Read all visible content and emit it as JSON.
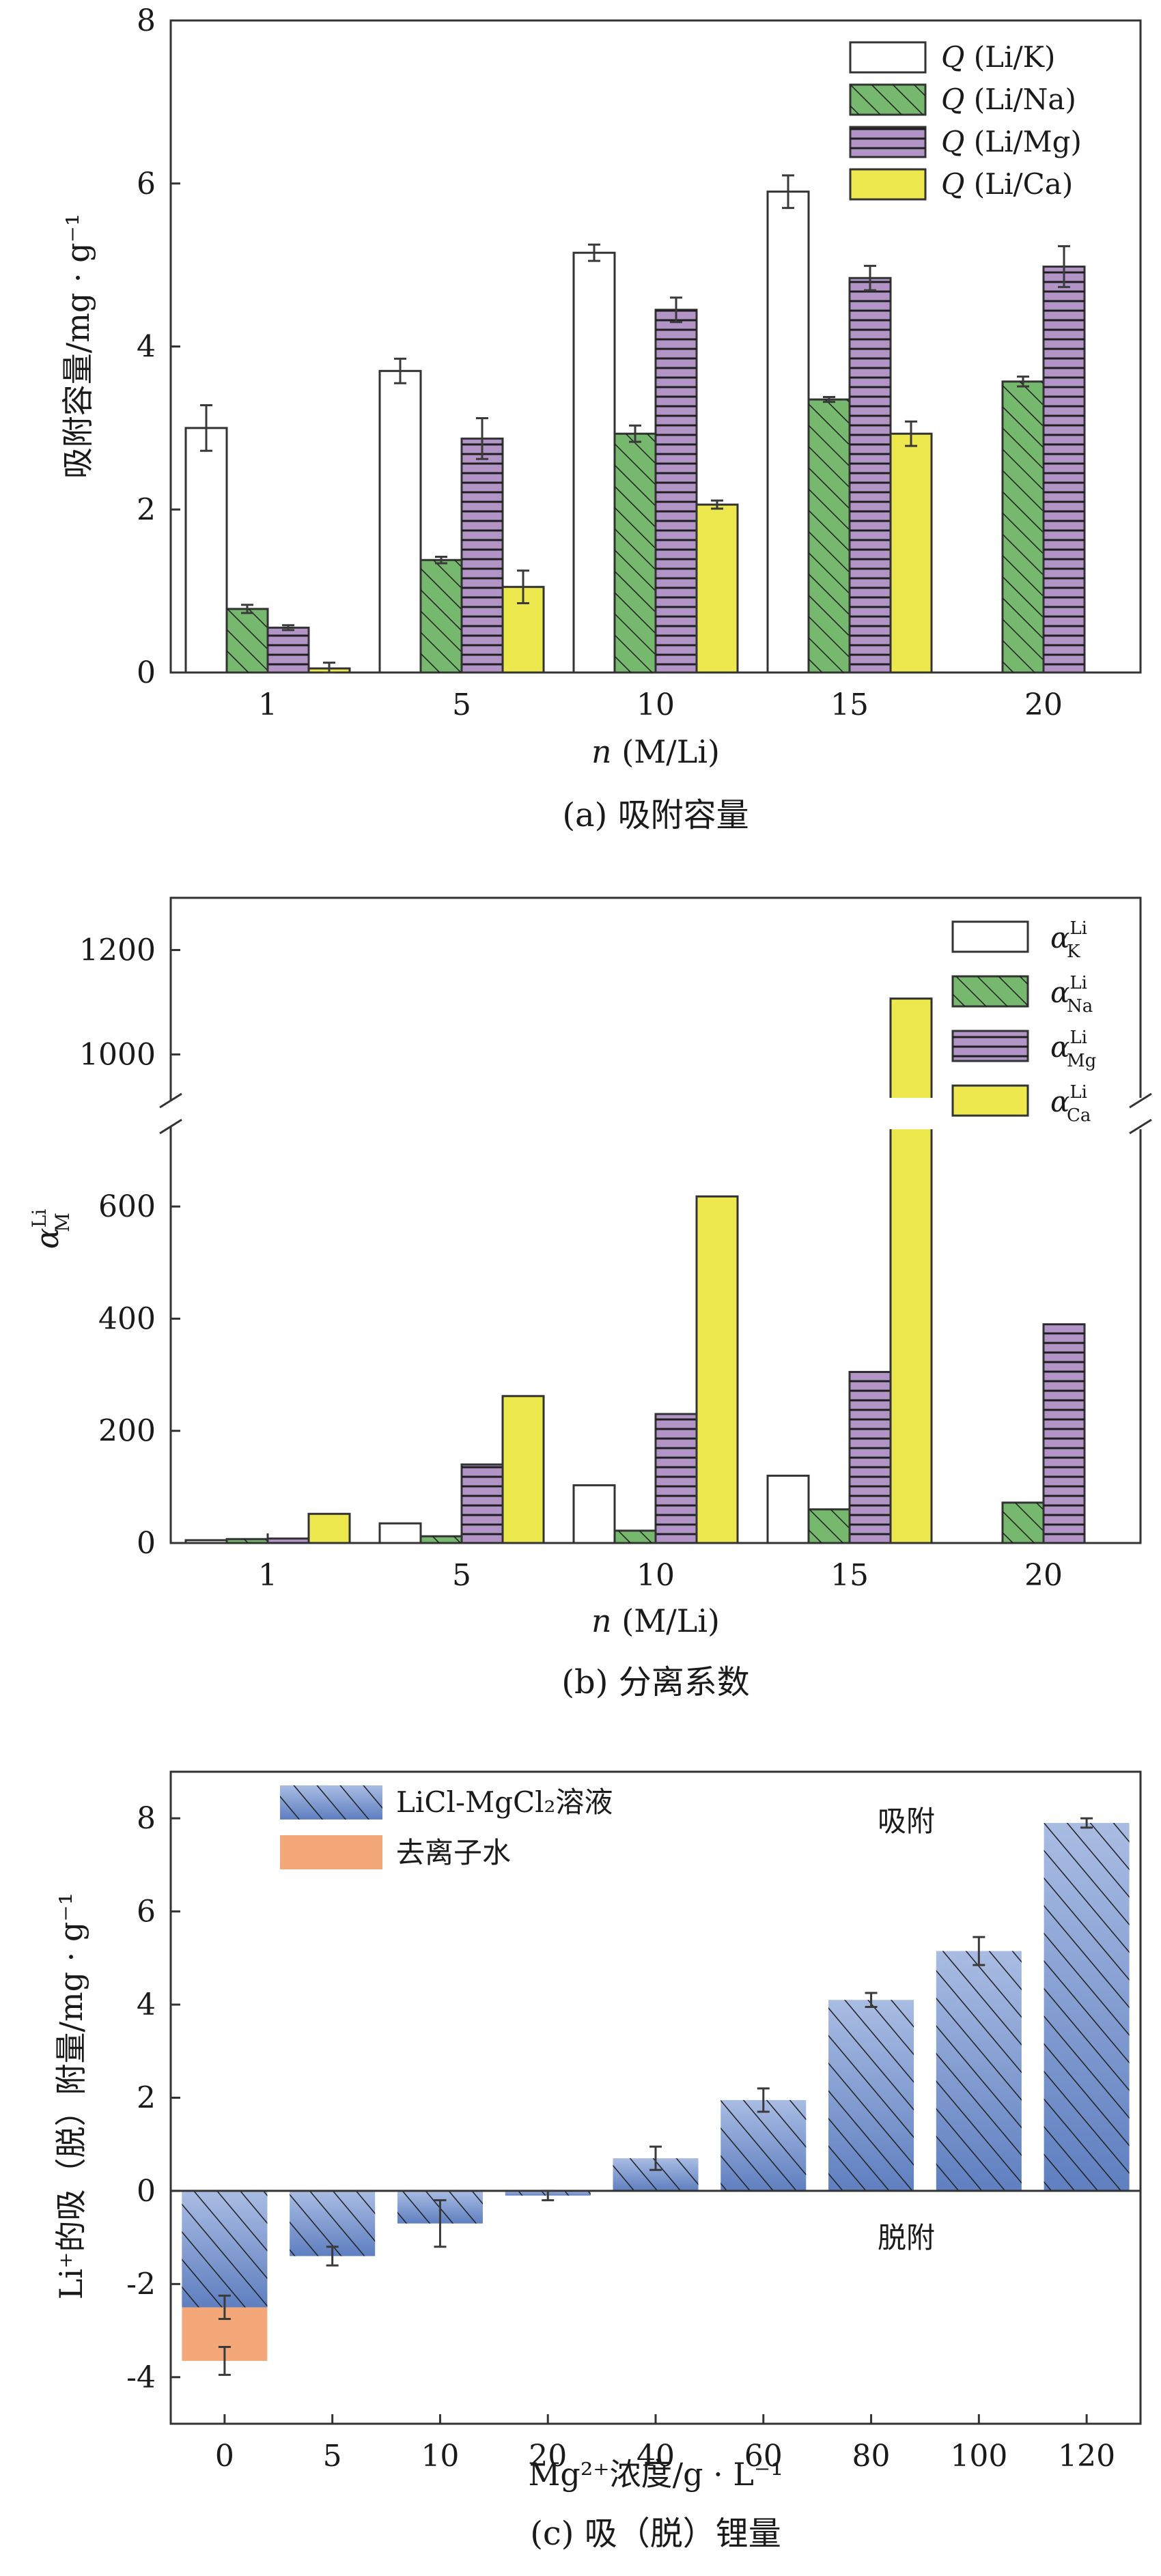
{
  "colors": {
    "K": "#ffffff",
    "Na": "#76b86e",
    "Mg": "#b394c7",
    "Ca": "#ece84e",
    "blue": "#7f98cc",
    "orange": "#f4a87a",
    "axis": "#333333"
  },
  "chart_data": [
    {
      "type": "bar",
      "panel": "a",
      "caption": "(a) 吸附容量",
      "ylabel": "吸附容量/mg · g⁻¹",
      "xlabel": "n (M/Li)",
      "xlabel_italic": "n",
      "xlabel_rest": " (M/Li)",
      "ylim": [
        0,
        8
      ],
      "yticks": [
        0,
        2,
        4,
        6,
        8
      ],
      "categories": [
        "1",
        "5",
        "10",
        "15",
        "20"
      ],
      "legend_position": "top-right",
      "series": [
        {
          "name": "Q (Li/K)",
          "q": "Q",
          "label": " (Li/K)",
          "key": "K",
          "values": [
            3.0,
            3.7,
            5.15,
            5.9,
            null
          ],
          "errors": [
            0.28,
            0.15,
            0.1,
            0.2,
            null
          ]
        },
        {
          "name": "Q (Li/Na)",
          "q": "Q",
          "label": " (Li/Na)",
          "key": "Na",
          "values": [
            0.78,
            1.38,
            2.93,
            3.35,
            3.57
          ],
          "errors": [
            0.05,
            0.04,
            0.1,
            0.03,
            0.06
          ]
        },
        {
          "name": "Q (Li/Mg)",
          "q": "Q",
          "label": " (Li/Mg)",
          "key": "Mg",
          "values": [
            0.55,
            2.87,
            4.45,
            4.84,
            4.98
          ],
          "errors": [
            0.03,
            0.25,
            0.15,
            0.15,
            0.25
          ]
        },
        {
          "name": "Q (Li/Ca)",
          "q": "Q",
          "label": " (Li/Ca)",
          "key": "Ca",
          "values": [
            0.05,
            1.05,
            2.06,
            2.93,
            null
          ],
          "errors": [
            0.07,
            0.2,
            0.05,
            0.15,
            null
          ]
        }
      ]
    },
    {
      "type": "bar",
      "panel": "b",
      "caption": "(b) 分离系数",
      "ylabel_main": "α",
      "ylabel_sup": "Li",
      "ylabel_sub": "M",
      "xlabel_italic": "n",
      "xlabel_rest": " (M/Li)",
      "ylim_lower": [
        0,
        700
      ],
      "ylim_upper": [
        960,
        1300
      ],
      "yticks": [
        0,
        200,
        400,
        600,
        1000,
        1200
      ],
      "axis_break": true,
      "categories": [
        "1",
        "5",
        "10",
        "15",
        "20"
      ],
      "legend_position": "top-right",
      "series": [
        {
          "name": "α K Li",
          "main": "α",
          "sup": "Li",
          "sub": "K",
          "key": "K",
          "values": [
            5,
            35,
            103,
            120,
            null
          ]
        },
        {
          "name": "α Na Li",
          "main": "α",
          "sup": "Li",
          "sub": "Na",
          "key": "Na",
          "values": [
            7,
            12,
            22,
            60,
            72
          ]
        },
        {
          "name": "α Mg Li",
          "main": "α",
          "sup": "Li",
          "sub": "Mg",
          "key": "Mg",
          "values": [
            8,
            140,
            230,
            305,
            390
          ]
        },
        {
          "name": "α Ca Li",
          "main": "α",
          "sup": "Li",
          "sub": "Ca",
          "key": "Ca",
          "values": [
            52,
            262,
            618,
            1107,
            null
          ]
        }
      ]
    },
    {
      "type": "bar",
      "panel": "c",
      "caption": "(c) 吸（脱）锂量",
      "ylabel": "Li⁺的吸（脱）附量/mg · g⁻¹",
      "xlabel": "Mg²⁺浓度/g · L⁻¹",
      "ylim": [
        -5,
        9
      ],
      "yticks": [
        -4,
        -2,
        0,
        2,
        4,
        6,
        8
      ],
      "categories": [
        "0",
        "5",
        "10",
        "20",
        "40",
        "60",
        "80",
        "100",
        "120"
      ],
      "annotations": [
        "吸附",
        "脱附"
      ],
      "legend_position": "top-left",
      "series": [
        {
          "name": "LiCl-MgCl₂溶液",
          "key": "blue",
          "values": [
            -2.5,
            -1.4,
            -0.7,
            -0.1,
            0.7,
            1.95,
            4.1,
            5.15,
            7.9
          ],
          "errors": [
            0.25,
            0.2,
            0.5,
            0.1,
            0.25,
            0.25,
            0.15,
            0.3,
            0.1
          ]
        },
        {
          "name": "去离子水",
          "key": "orange",
          "values": [
            -3.65,
            null,
            null,
            null,
            null,
            null,
            null,
            null,
            null
          ],
          "errors": [
            0.3,
            null,
            null,
            null,
            null,
            null,
            null,
            null,
            null
          ]
        }
      ]
    }
  ]
}
